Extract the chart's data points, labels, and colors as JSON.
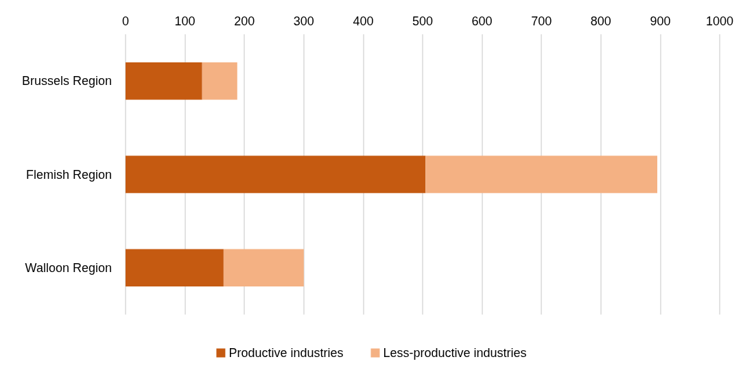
{
  "chart_data": {
    "type": "bar",
    "orientation": "horizontal",
    "stacked": true,
    "categories": [
      "Brussels Region",
      "Flemish Region",
      "Walloon Region"
    ],
    "series": [
      {
        "name": "Productive industries",
        "color": "#c55a11",
        "values": [
          129,
          505,
          165
        ]
      },
      {
        "name": "Less-productive industries",
        "color": "#f4b183",
        "values": [
          59,
          390,
          135
        ]
      }
    ],
    "xlim": [
      0,
      1000
    ],
    "xticks": [
      0,
      100,
      200,
      300,
      400,
      500,
      600,
      700,
      800,
      900,
      1000
    ],
    "grid": "x",
    "legend": "bottom"
  }
}
